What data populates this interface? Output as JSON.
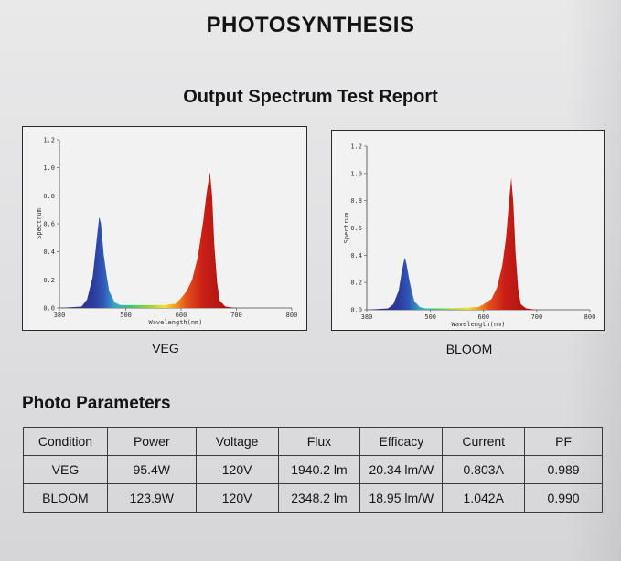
{
  "page": {
    "title": "PHOTOSYNTHESIS",
    "subtitle": "Output Spectrum Test Report"
  },
  "chart_data": [
    {
      "type": "area",
      "caption": "VEG",
      "xlabel": "Wavelength(nm)",
      "ylabel": "Spectrum",
      "xlim": [
        380,
        800
      ],
      "ylim": [
        0,
        1.2
      ],
      "x_ticks": [
        "380",
        "500",
        "600",
        "700",
        "800"
      ],
      "y_ticks": [
        "0.0",
        "0.2",
        "0.4",
        "0.6",
        "0.8",
        "1.0",
        "1.2"
      ],
      "points": [
        [
          380,
          0
        ],
        [
          420,
          0.01
        ],
        [
          430,
          0.06
        ],
        [
          440,
          0.22
        ],
        [
          445,
          0.4
        ],
        [
          450,
          0.58
        ],
        [
          452,
          0.65
        ],
        [
          455,
          0.6
        ],
        [
          460,
          0.38
        ],
        [
          465,
          0.24
        ],
        [
          470,
          0.12
        ],
        [
          480,
          0.04
        ],
        [
          490,
          0.02
        ],
        [
          510,
          0.02
        ],
        [
          540,
          0.02
        ],
        [
          570,
          0.02
        ],
        [
          590,
          0.03
        ],
        [
          600,
          0.07
        ],
        [
          610,
          0.12
        ],
        [
          620,
          0.2
        ],
        [
          630,
          0.36
        ],
        [
          640,
          0.62
        ],
        [
          646,
          0.82
        ],
        [
          652,
          0.97
        ],
        [
          656,
          0.8
        ],
        [
          660,
          0.45
        ],
        [
          665,
          0.18
        ],
        [
          670,
          0.05
        ],
        [
          680,
          0.01
        ],
        [
          700,
          0
        ],
        [
          800,
          0
        ]
      ]
    },
    {
      "type": "area",
      "caption": "BLOOM",
      "xlabel": "Wavelength(nm)",
      "ylabel": "Spectrum",
      "xlim": [
        380,
        800
      ],
      "ylim": [
        0,
        1.2
      ],
      "x_ticks": [
        "380",
        "500",
        "600",
        "700",
        "800"
      ],
      "y_ticks": [
        "0.0",
        "0.2",
        "0.4",
        "0.6",
        "0.8",
        "1.0",
        "1.2"
      ],
      "points": [
        [
          380,
          0
        ],
        [
          420,
          0.01
        ],
        [
          430,
          0.04
        ],
        [
          440,
          0.14
        ],
        [
          445,
          0.26
        ],
        [
          450,
          0.36
        ],
        [
          452,
          0.38
        ],
        [
          455,
          0.33
        ],
        [
          460,
          0.22
        ],
        [
          465,
          0.13
        ],
        [
          470,
          0.06
        ],
        [
          480,
          0.02
        ],
        [
          490,
          0.01
        ],
        [
          540,
          0.01
        ],
        [
          590,
          0.02
        ],
        [
          600,
          0.04
        ],
        [
          615,
          0.08
        ],
        [
          625,
          0.16
        ],
        [
          635,
          0.32
        ],
        [
          642,
          0.52
        ],
        [
          648,
          0.8
        ],
        [
          652,
          0.97
        ],
        [
          656,
          0.78
        ],
        [
          660,
          0.42
        ],
        [
          665,
          0.15
        ],
        [
          670,
          0.04
        ],
        [
          680,
          0.01
        ],
        [
          700,
          0
        ],
        [
          800,
          0
        ]
      ]
    }
  ],
  "params": {
    "section_title": "Photo Parameters",
    "headers": [
      "Condition",
      "Power",
      "Voltage",
      "Flux",
      "Efficacy",
      "Current",
      "PF"
    ],
    "rows": [
      [
        "VEG",
        "95.4W",
        "120V",
        "1940.2 lm",
        "20.34 lm/W",
        "0.803A",
        "0.989"
      ],
      [
        "BLOOM",
        "123.9W",
        "120V",
        "2348.2 lm",
        "18.95 lm/W",
        "1.042A",
        "0.990"
      ]
    ]
  }
}
